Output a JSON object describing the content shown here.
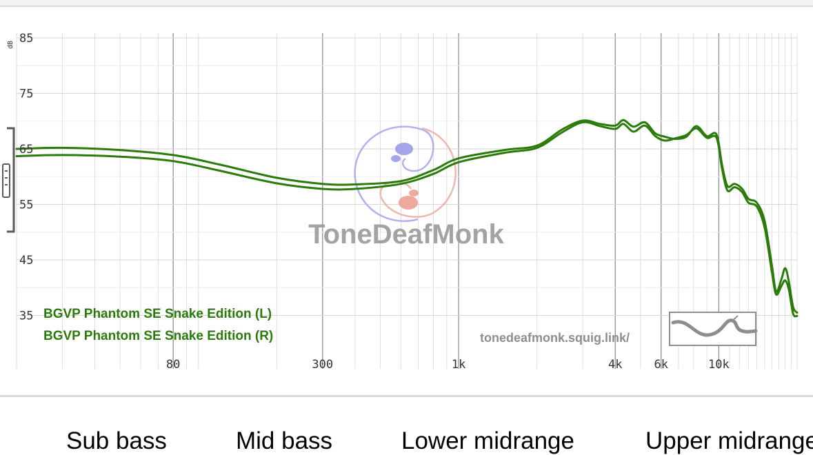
{
  "chart_data": {
    "type": "line",
    "xscale": "log",
    "xlim": [
      20,
      20000
    ],
    "ylim": [
      30,
      90
    ],
    "y_unit": "dB",
    "y_ticks": [
      "35",
      "45",
      "55",
      "65",
      "75",
      "85"
    ],
    "y_tick_values": [
      35,
      45,
      55,
      65,
      75,
      85
    ],
    "x_ticks": [
      "80",
      "300",
      "1k",
      "4k",
      "6k",
      "10k"
    ],
    "x_tick_values": [
      80,
      300,
      1000,
      4000,
      6000,
      10000
    ],
    "grid": true,
    "legend_position": "bottom-left",
    "series": [
      {
        "name": "BGVP Phantom SE Snake Edition (L)",
        "color": "#2a7b0a",
        "points": [
          [
            20,
            65
          ],
          [
            30,
            65.2
          ],
          [
            50,
            64.8
          ],
          [
            80,
            63.9
          ],
          [
            120,
            62.2
          ],
          [
            200,
            59.8
          ],
          [
            300,
            58.7
          ],
          [
            400,
            58.6
          ],
          [
            600,
            59.2
          ],
          [
            800,
            61.2
          ],
          [
            1000,
            63.3
          ],
          [
            1500,
            64.8
          ],
          [
            2000,
            65.6
          ],
          [
            2500,
            68.5
          ],
          [
            3000,
            70.1
          ],
          [
            3500,
            69.5
          ],
          [
            4000,
            69.2
          ],
          [
            4300,
            70.2
          ],
          [
            4700,
            69.0
          ],
          [
            5200,
            69.8
          ],
          [
            5700,
            67.8
          ],
          [
            6200,
            67.2
          ],
          [
            6800,
            66.8
          ],
          [
            7500,
            67.2
          ],
          [
            8200,
            69.1
          ],
          [
            9000,
            67.3
          ],
          [
            9800,
            67.6
          ],
          [
            10300,
            62.0
          ],
          [
            10800,
            58.3
          ],
          [
            11500,
            58.7
          ],
          [
            12300,
            57.8
          ],
          [
            13000,
            56.0
          ],
          [
            14000,
            55.3
          ],
          [
            15000,
            52.0
          ],
          [
            16000,
            44.0
          ],
          [
            16600,
            39.3
          ],
          [
            17400,
            41.5
          ],
          [
            18000,
            43.5
          ],
          [
            18600,
            41.0
          ],
          [
            19300,
            36.5
          ],
          [
            20000,
            35.5
          ]
        ]
      },
      {
        "name": "BGVP Phantom SE Snake Edition (R)",
        "color": "#2a7b0a",
        "points": [
          [
            20,
            63.7
          ],
          [
            30,
            63.9
          ],
          [
            50,
            63.6
          ],
          [
            80,
            62.8
          ],
          [
            120,
            61.1
          ],
          [
            200,
            58.8
          ],
          [
            300,
            57.8
          ],
          [
            400,
            57.8
          ],
          [
            600,
            58.7
          ],
          [
            800,
            60.5
          ],
          [
            1000,
            62.6
          ],
          [
            1500,
            64.3
          ],
          [
            2000,
            65.2
          ],
          [
            2500,
            68.0
          ],
          [
            3000,
            69.8
          ],
          [
            3500,
            69.1
          ],
          [
            4000,
            68.6
          ],
          [
            4300,
            69.5
          ],
          [
            4700,
            68.1
          ],
          [
            5200,
            69.2
          ],
          [
            5700,
            67.3
          ],
          [
            6200,
            66.5
          ],
          [
            6800,
            66.9
          ],
          [
            7500,
            67.5
          ],
          [
            8200,
            68.7
          ],
          [
            9000,
            67.0
          ],
          [
            9800,
            67.0
          ],
          [
            10300,
            61.3
          ],
          [
            10800,
            57.5
          ],
          [
            11500,
            58.1
          ],
          [
            12300,
            57.2
          ],
          [
            13000,
            55.3
          ],
          [
            14000,
            54.6
          ],
          [
            15000,
            50.8
          ],
          [
            16000,
            42.8
          ],
          [
            16600,
            38.8
          ],
          [
            17400,
            40.3
          ],
          [
            18000,
            41.3
          ],
          [
            18600,
            39.6
          ],
          [
            19300,
            35.3
          ],
          [
            20000,
            34.9
          ]
        ]
      }
    ]
  },
  "watermark": {
    "brand": "ToneDeafMonk",
    "url": "tonedeafmonk.squig.link/"
  },
  "bands": [
    "Sub bass",
    "Mid bass",
    "Lower midrange",
    "Upper midrange"
  ]
}
